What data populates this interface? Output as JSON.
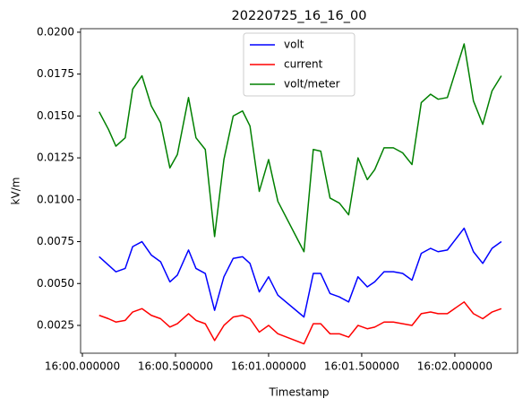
{
  "chart_data": {
    "type": "line",
    "title": "20220725_16_16_00",
    "xlabel": "Timestamp",
    "ylabel": "kV/m",
    "x": [
      0.09,
      0.14,
      0.18,
      0.23,
      0.27,
      0.32,
      0.37,
      0.42,
      0.47,
      0.51,
      0.57,
      0.61,
      0.66,
      0.71,
      0.76,
      0.81,
      0.86,
      0.9,
      0.95,
      1.0,
      1.05,
      1.19,
      1.24,
      1.28,
      1.33,
      1.38,
      1.43,
      1.48,
      1.53,
      1.57,
      1.62,
      1.67,
      1.72,
      1.77,
      1.82,
      1.87,
      1.91,
      1.96,
      2.05,
      2.1,
      2.15,
      2.2,
      2.25
    ],
    "series": [
      {
        "name": "volt",
        "color": "#0000ff",
        "values": [
          0.0066,
          0.0061,
          0.0057,
          0.0059,
          0.0072,
          0.0075,
          0.0067,
          0.0063,
          0.0051,
          0.0055,
          0.007,
          0.0059,
          0.0056,
          0.0034,
          0.0054,
          0.0065,
          0.0066,
          0.0062,
          0.0045,
          0.0054,
          0.0043,
          0.003,
          0.0056,
          0.0056,
          0.0044,
          0.0042,
          0.0039,
          0.0054,
          0.0048,
          0.0051,
          0.0057,
          0.0057,
          0.0056,
          0.0052,
          0.0068,
          0.0071,
          0.0069,
          0.007,
          0.0083,
          0.0069,
          0.0062,
          0.0071,
          0.0075
        ]
      },
      {
        "name": "current",
        "color": "#ff0000",
        "values": [
          0.0031,
          0.0029,
          0.0027,
          0.0028,
          0.0033,
          0.0035,
          0.0031,
          0.0029,
          0.0024,
          0.0026,
          0.0032,
          0.0028,
          0.0026,
          0.0016,
          0.0025,
          0.003,
          0.0031,
          0.0029,
          0.0021,
          0.0025,
          0.002,
          0.0014,
          0.0026,
          0.0026,
          0.002,
          0.002,
          0.0018,
          0.0025,
          0.0023,
          0.0024,
          0.0027,
          0.0027,
          0.0026,
          0.0025,
          0.0032,
          0.0033,
          0.0032,
          0.0032,
          0.0039,
          0.0032,
          0.0029,
          0.0033,
          0.0035
        ]
      },
      {
        "name": "volt/meter",
        "color": "#008000",
        "values": [
          0.01525,
          0.0142,
          0.0132,
          0.0137,
          0.0166,
          0.0174,
          0.0156,
          0.0146,
          0.0119,
          0.0127,
          0.0161,
          0.0137,
          0.013,
          0.0078,
          0.0124,
          0.015,
          0.0153,
          0.0144,
          0.0105,
          0.0124,
          0.0099,
          0.0069,
          0.013,
          0.0129,
          0.0101,
          0.0098,
          0.0091,
          0.0125,
          0.0112,
          0.0118,
          0.0131,
          0.0131,
          0.0128,
          0.0121,
          0.0158,
          0.0163,
          0.016,
          0.0161,
          0.0193,
          0.0159,
          0.0145,
          0.0165,
          0.0174
        ]
      }
    ],
    "xlim": [
      -0.0096,
      2.337
    ],
    "xticks": [
      {
        "value": 0,
        "label": "16:00.000000"
      },
      {
        "value": 0.5,
        "label": "16:00.500000"
      },
      {
        "value": 1,
        "label": "16:01.000000"
      },
      {
        "value": 1.5,
        "label": "16:01.500000"
      },
      {
        "value": 2,
        "label": "16:02.000000"
      }
    ],
    "ylim": [
      0.00084,
      0.02021
    ],
    "yticks": [
      0.0025,
      {
        "value": 0.005,
        "label": "0.0050"
      },
      0.0075,
      {
        "value": 0.01,
        "label": "0.0100"
      },
      0.0125,
      {
        "value": 0.015,
        "label": "0.0150"
      },
      0.0175,
      {
        "value": 0.02,
        "label": "0.0200"
      }
    ],
    "legend": "upper center",
    "grid": false
  }
}
